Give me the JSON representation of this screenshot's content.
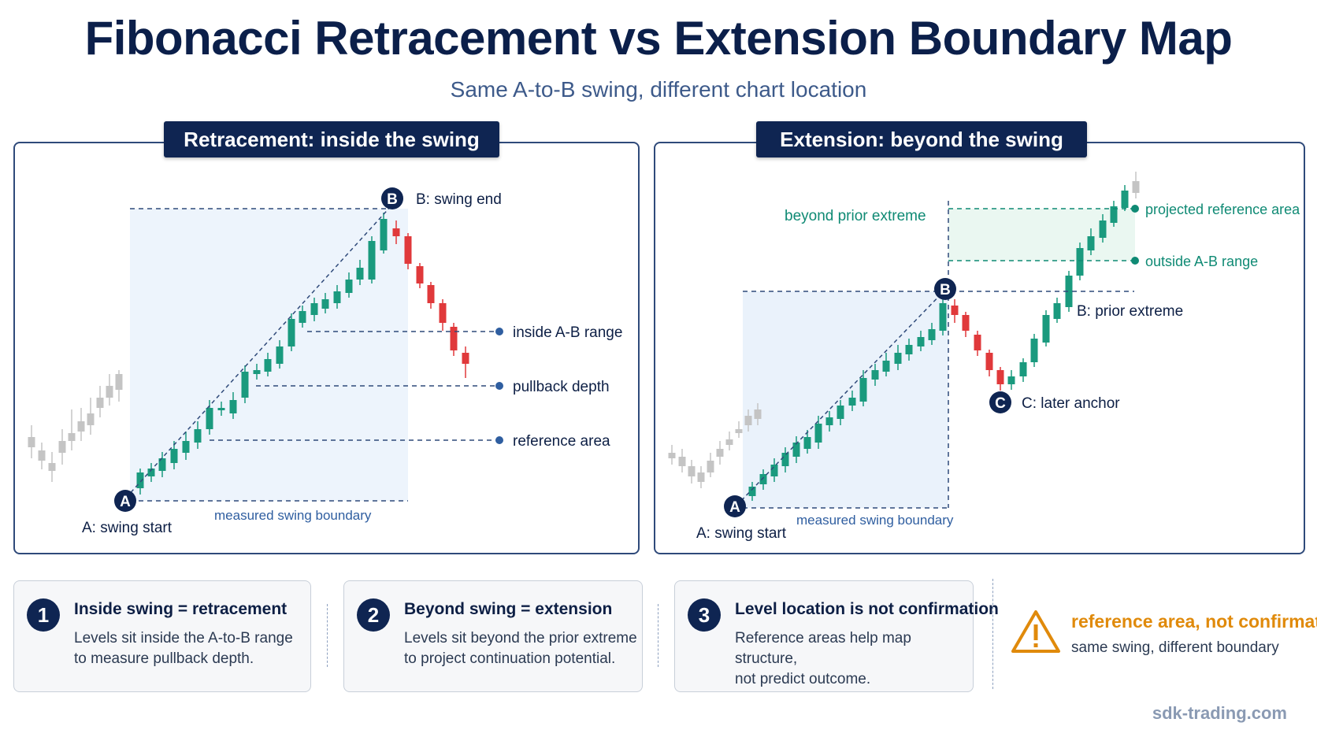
{
  "title": "Fibonacci Retracement vs Extension Boundary Map",
  "subtitle": "Same A-to-B swing, different chart location",
  "left_panel": {
    "header": "Retracement: inside the swing",
    "point_a": "A",
    "point_b": "B",
    "label_a": "A: swing start",
    "label_b": "B: swing end",
    "level_1": "inside A-B range",
    "level_2": "pullback depth",
    "level_3": "reference area",
    "boundary": "measured swing boundary"
  },
  "right_panel": {
    "header": "Extension: beyond the swing",
    "point_a": "A",
    "point_b": "B",
    "point_c": "C",
    "label_a": "A: swing start",
    "label_b": "B: prior extreme",
    "label_c": "C: later anchor",
    "beyond": "beyond prior extreme",
    "level_1": "projected reference area",
    "level_2": "outside A-B range",
    "boundary": "measured swing boundary"
  },
  "cards": [
    {
      "num": "1",
      "title": "Inside swing = retracement",
      "line1": "Levels sit inside the A-to-B range",
      "line2": "to measure pullback depth."
    },
    {
      "num": "2",
      "title": "Beyond swing = extension",
      "line1": "Levels sit beyond the prior extreme",
      "line2": "to project continuation potential."
    },
    {
      "num": "3",
      "title": "Level location is not confirmation",
      "line1": "Reference areas help map structure,",
      "line2": "not predict outcome."
    }
  ],
  "warning": {
    "icon": "warning-triangle-icon",
    "title": "reference area, not confirmation",
    "subtitle": "same swing, different boundary"
  },
  "footer": "sdk-trading.com",
  "colors": {
    "navy": "#0f2552",
    "bull": "#1a9a7e",
    "bear": "#e0393b",
    "neutral": "#c4c4c4",
    "teal_text": "#0f8a74",
    "warning": "#e08a0b"
  }
}
